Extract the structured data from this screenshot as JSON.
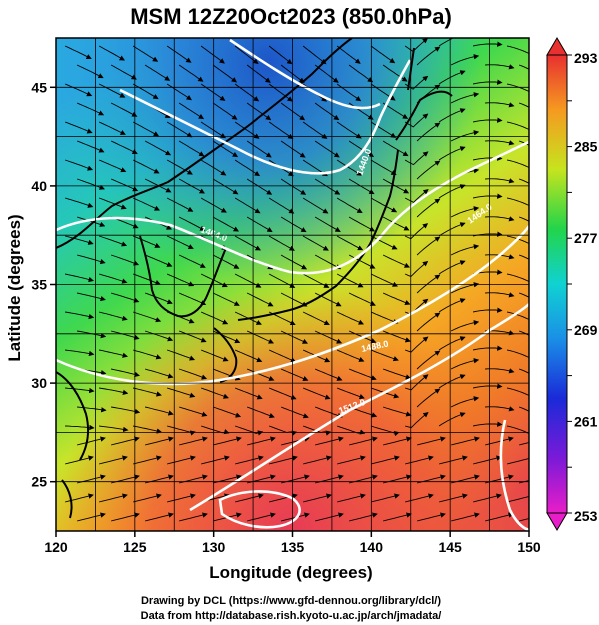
{
  "title": "MSM 12Z20Oct2023 (850.0hPa)",
  "xlabel": "Longitude (degrees)",
  "ylabel": "Latitude  (degrees)",
  "x_ticks": [
    "120",
    "125",
    "130",
    "135",
    "140",
    "145",
    "150"
  ],
  "y_ticks": [
    "25",
    "30",
    "35",
    "40",
    "45"
  ],
  "colorbar": {
    "labels": [
      "293",
      "285",
      "277",
      "269",
      "261",
      "253"
    ],
    "min": 253,
    "max": 293
  },
  "contour_labels": [
    "1512.0",
    "1488.0",
    "1464.0",
    "1440.0",
    "1464.0"
  ],
  "credits": {
    "line1": "Drawing by DCL (https://www.gfd-dennou.org/library/dcl/)",
    "line2": "Data from http://database.rish.kyoto-u.ac.jp/arch/jmadata/"
  },
  "colors": {
    "cold": "#2f6fd6",
    "mid": "#33d44a",
    "warm": "#f58a1f",
    "hot": "#e8404a",
    "contour": "#ffffff",
    "vector": "#000000"
  },
  "chart_data": {
    "type": "heatmap",
    "variable": "temperature (K) with geopotential height contours and wind streamlines",
    "xlim": [
      120,
      150
    ],
    "ylim": [
      22.5,
      47.5
    ],
    "value_range": [
      253,
      293
    ]
  }
}
